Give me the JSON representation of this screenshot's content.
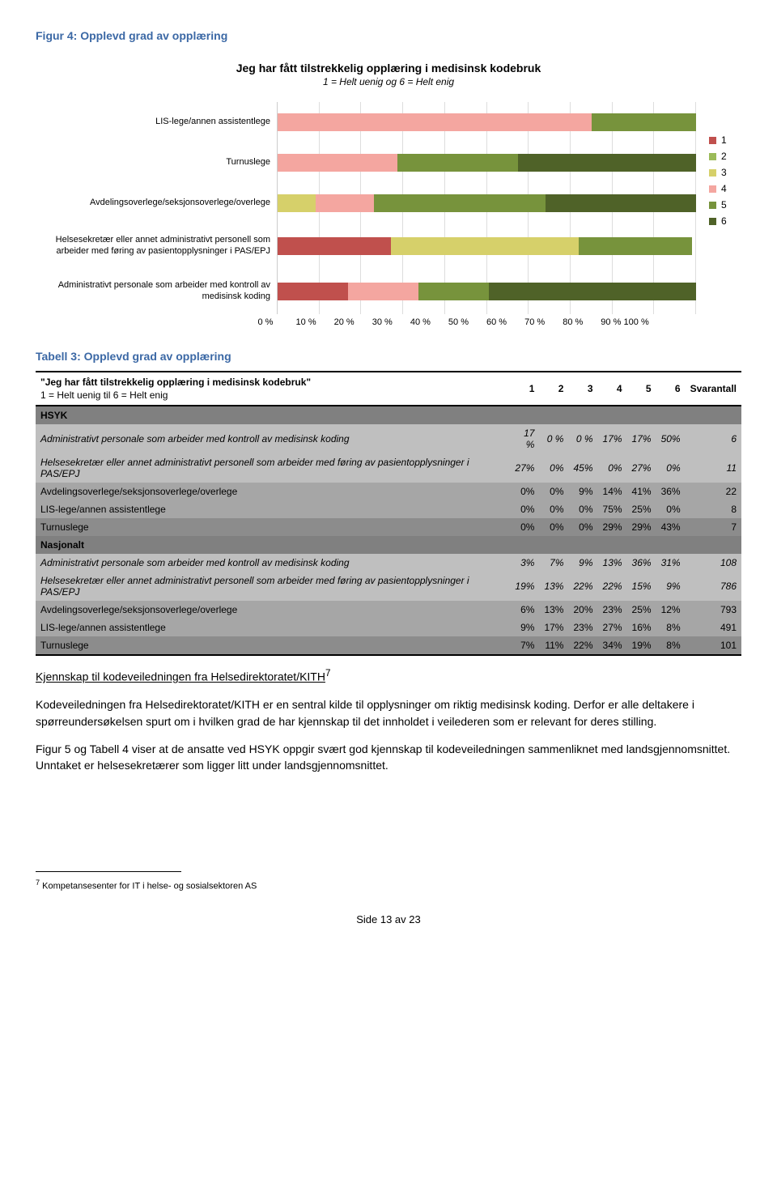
{
  "figure": {
    "caption": "Figur 4: Opplevd grad av opplæring",
    "title": "Jeg har fått tilstrekkelig opplæring i medisinsk kodebruk",
    "subtitle": "1 = Helt uenig og 6 = Helt enig",
    "categories": [
      {
        "label": "LIS-lege/annen assistentlege",
        "segs": [
          0,
          0,
          0,
          75,
          25,
          0
        ]
      },
      {
        "label": "Turnuslege",
        "segs": [
          0,
          0,
          0,
          29,
          29,
          43
        ]
      },
      {
        "label": "Avdelingsoverlege/seksjonsoverlege/overlege",
        "segs": [
          0,
          0,
          9,
          14,
          41,
          36
        ]
      },
      {
        "label": "Helsesekretær eller annet administrativt personell som arbeider med føring av pasientopplysninger i PAS/EPJ",
        "segs": [
          27,
          0,
          45,
          0,
          27,
          0
        ]
      },
      {
        "label": "Administrativt personale som arbeider med kontroll av medisinsk koding",
        "segs": [
          17,
          0,
          0,
          17,
          17,
          50
        ]
      }
    ],
    "colors": [
      "#c0504d",
      "#9bbb59",
      "#d6d06a",
      "#f4a6a0",
      "#77933c",
      "#4f6228"
    ],
    "legend": [
      "1",
      "2",
      "3",
      "4",
      "5",
      "6"
    ],
    "xticks": [
      "0 %",
      "10 %",
      "20 %",
      "30 %",
      "40 %",
      "50 %",
      "60 %",
      "70 %",
      "80 %",
      "90 %",
      "100 %"
    ],
    "grid_color": "#dddddd"
  },
  "table": {
    "caption": "Tabell 3: Opplevd grad av opplæring",
    "header_main": "\"Jeg har fått tilstrekkelig opplæring i medisinsk kodebruk\"",
    "header_sub": "1 = Helt uenig til 6 = Helt enig",
    "cols": [
      "1",
      "2",
      "3",
      "4",
      "5",
      "6",
      "Svarantall"
    ],
    "section1": "HSYK",
    "section2": "Nasjonalt",
    "rows_hsyk": [
      {
        "label": "Administrativt personale som arbeider med kontroll av medisinsk koding",
        "c": [
          "17 %",
          "0 %",
          "0 %",
          "17%",
          "17%",
          "50%",
          "6"
        ]
      },
      {
        "label": "Helsesekretær eller annet administrativt personell som arbeider med føring av pasientopplysninger i PAS/EPJ",
        "c": [
          "27%",
          "0%",
          "45%",
          "0%",
          "27%",
          "0%",
          "11"
        ]
      },
      {
        "label": "Avdelingsoverlege/seksjonsoverlege/overlege",
        "c": [
          "0%",
          "0%",
          "9%",
          "14%",
          "41%",
          "36%",
          "22"
        ]
      },
      {
        "label": "LIS-lege/annen assistentlege",
        "c": [
          "0%",
          "0%",
          "0%",
          "75%",
          "25%",
          "0%",
          "8"
        ]
      },
      {
        "label": "Turnuslege",
        "c": [
          "0%",
          "0%",
          "0%",
          "29%",
          "29%",
          "43%",
          "7"
        ]
      }
    ],
    "rows_nasj": [
      {
        "label": "Administrativt personale som arbeider med kontroll av medisinsk koding",
        "c": [
          "3%",
          "7%",
          "9%",
          "13%",
          "36%",
          "31%",
          "108"
        ]
      },
      {
        "label": "Helsesekretær eller annet administrativt personell som arbeider med føring av pasientopplysninger i PAS/EPJ",
        "c": [
          "19%",
          "13%",
          "22%",
          "22%",
          "15%",
          "9%",
          "786"
        ]
      },
      {
        "label": "Avdelingsoverlege/seksjonsoverlege/overlege",
        "c": [
          "6%",
          "13%",
          "20%",
          "23%",
          "25%",
          "12%",
          "793"
        ]
      },
      {
        "label": "LIS-lege/annen assistentlege",
        "c": [
          "9%",
          "17%",
          "23%",
          "27%",
          "16%",
          "8%",
          "491"
        ]
      },
      {
        "label": "Turnuslege",
        "c": [
          "7%",
          "11%",
          "22%",
          "34%",
          "19%",
          "8%",
          "101"
        ]
      }
    ]
  },
  "body": {
    "heading": "Kjennskap til kodeveiledningen fra Helsedirektoratet/KITH",
    "heading_sup": "7",
    "p1": "Kodeveiledningen fra Helsedirektoratet/KITH er en sentral kilde til opplysninger om riktig medisinsk koding. Derfor er alle deltakere i spørreundersøkelsen spurt om i hvilken grad de har kjennskap til det innholdet i veilederen som er relevant for deres stilling.",
    "p2": "Figur 5 og Tabell 4 viser at de ansatte ved HSYK oppgir svært god kjennskap til kodeveiledningen sammenliknet med landsgjennomsnittet. Unntaket er helsesekretærer som ligger litt under landsgjennomsnittet.",
    "footnote_num": "7",
    "footnote": " Kompetansesenter for IT i helse- og sosialsektoren AS",
    "footer": "Side 13 av 23"
  }
}
